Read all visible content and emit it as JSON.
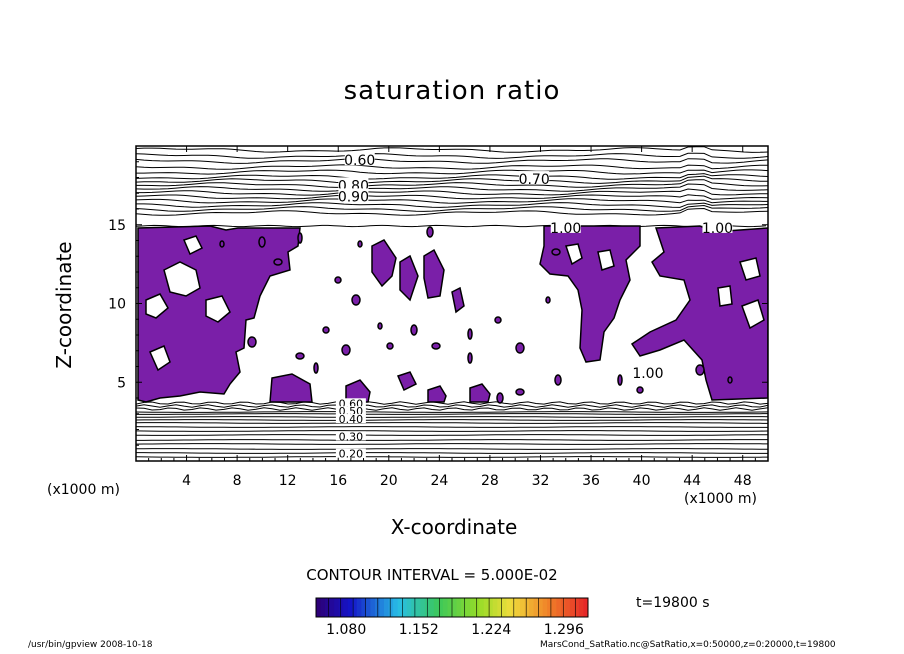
{
  "figure": {
    "title": "saturation ratio",
    "contour_interval": "CONTOUR INTERVAL = 5.000E-02",
    "time_label": "t=19800 s",
    "footer_left": "/usr/bin/gpview   2008-10-18",
    "footer_right": "MarsCond_SatRatio.nc@SatRatio,x=0:50000,z=0:20000,t=19800",
    "x_unit_left": "(x1000 m)",
    "x_unit_right": "(x1000 m)"
  },
  "colors": {
    "fill": "#7a1fa8",
    "line": "#000000",
    "background": "#ffffff"
  },
  "chart_data": {
    "type": "contour",
    "title": "saturation ratio",
    "xlabel": "X-coordinate",
    "ylabel": "Z-coordinate",
    "xlim": [
      0,
      50
    ],
    "ylim": [
      0,
      20
    ],
    "xticks": [
      4,
      8,
      12,
      16,
      20,
      24,
      28,
      32,
      36,
      40,
      44,
      48
    ],
    "yticks": [
      5,
      10,
      15
    ],
    "contour_labels": [
      {
        "text": "0.60",
        "x": 17.7,
        "z": 19.1
      },
      {
        "text": "0.70",
        "x": 31.5,
        "z": 17.9
      },
      {
        "text": "0.80",
        "x": 17.2,
        "z": 17.5
      },
      {
        "text": "0.90",
        "x": 17.2,
        "z": 16.8
      },
      {
        "text": "1.00",
        "x": 34.0,
        "z": 14.8
      },
      {
        "text": "1.00",
        "x": 46.0,
        "z": 14.8
      },
      {
        "text": "1.00",
        "x": 40.5,
        "z": 5.6
      },
      {
        "text": "0.60",
        "x": 17.0,
        "z": 3.6
      },
      {
        "text": "0.50",
        "x": 17.0,
        "z": 3.1
      },
      {
        "text": "0.40",
        "x": 17.0,
        "z": 2.6
      },
      {
        "text": "0.30",
        "x": 17.0,
        "z": 1.5
      },
      {
        "text": "0.20",
        "x": 17.0,
        "z": 0.4
      }
    ],
    "colorbar": {
      "ticks": [
        "1.080",
        "1.152",
        "1.224",
        "1.296"
      ],
      "min": 1.05,
      "max": 1.32
    },
    "filled_region_note": "supersaturated (saturation ratio > 1.05) regions shaded"
  }
}
